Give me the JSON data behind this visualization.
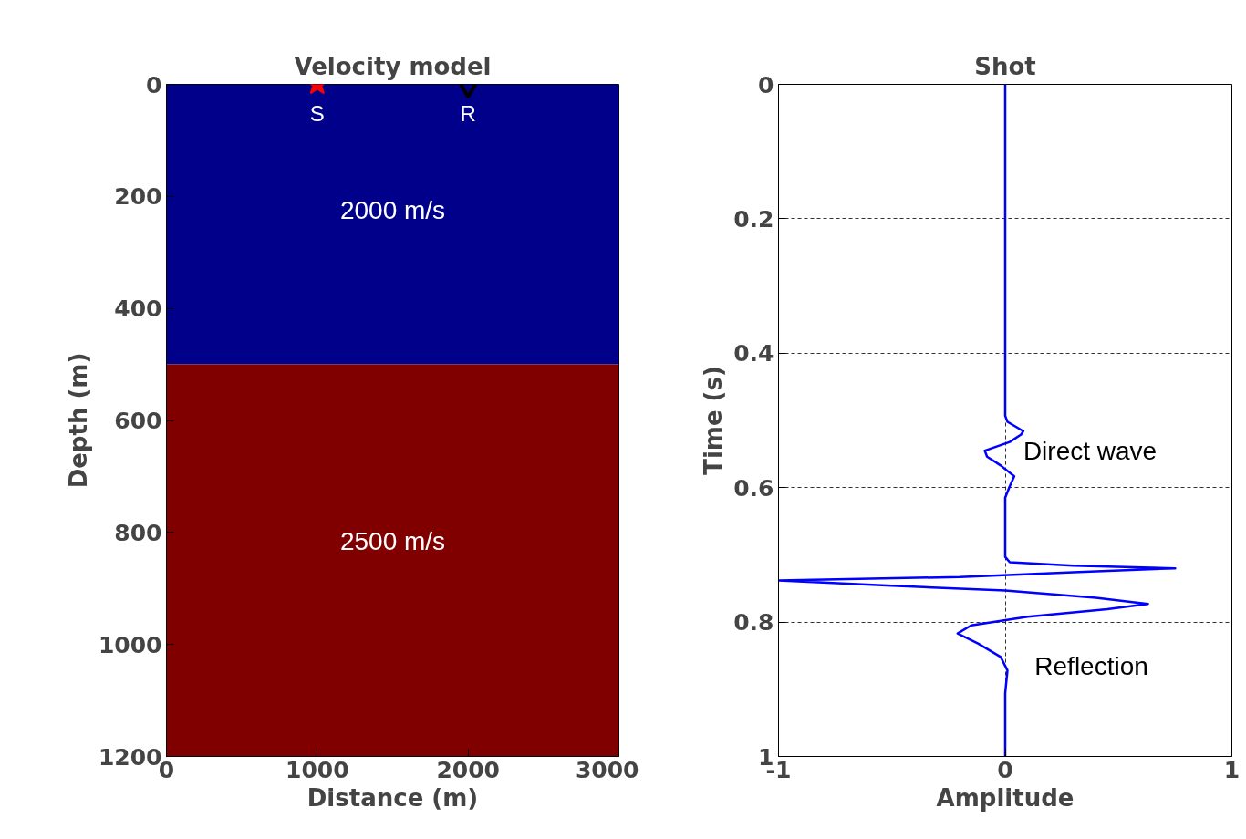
{
  "chart_data": [
    {
      "type": "scatter",
      "title": "Velocity model",
      "xlabel": "Distance (m)",
      "ylabel": "Depth (m)",
      "xlim": [
        0,
        3000
      ],
      "ylim": [
        1200,
        0
      ],
      "xticks": [
        0,
        1000,
        2000,
        3000
      ],
      "yticks": [
        0,
        200,
        400,
        600,
        800,
        1000,
        1200
      ],
      "grid": false,
      "bands": [
        {
          "axis": "y",
          "from": 0,
          "to": 500,
          "label": "2000 m/s",
          "color": "#00008b"
        },
        {
          "axis": "y",
          "from": 500,
          "to": 1200,
          "label": "2500 m/s",
          "color": "#800000"
        }
      ],
      "series": [
        {
          "name": "S",
          "color": "#ff0000",
          "marker": "star",
          "x": [
            1000
          ],
          "values": [
            0
          ]
        },
        {
          "name": "R",
          "color": "#000000",
          "marker": "triangle",
          "x": [
            2000
          ],
          "values": [
            0
          ]
        }
      ]
    },
    {
      "type": "line",
      "title": "Shot",
      "xlabel": "Amplitude",
      "ylabel": "Time (s)",
      "xlim": [
        -1,
        1
      ],
      "ylim": [
        1,
        0
      ],
      "xticks": [
        -1,
        0,
        1
      ],
      "yticks": [
        0,
        0.2,
        0.4,
        0.6,
        0.8,
        1
      ],
      "grid": true,
      "line_style": "solid",
      "annotations": [
        "Direct wave",
        "Reflection"
      ],
      "series": [
        {
          "color": "#0000ff",
          "x": [
            0,
            0,
            0.01,
            0.08,
            0.07,
            0.02,
            -0.09,
            -0.08,
            -0.02,
            0.04,
            0.02,
            0,
            0,
            0.02,
            0.3,
            0.75,
            0.3,
            -0.2,
            -1.0,
            -0.5,
            0,
            0.4,
            0.63,
            0.45,
            0.1,
            -0.15,
            -0.21,
            -0.12,
            -0.02,
            0.01,
            0,
            0
          ],
          "values": [
            0,
            0.493,
            0.502,
            0.516,
            0.521,
            0.532,
            0.545,
            0.554,
            0.567,
            0.583,
            0.598,
            0.615,
            0.703,
            0.711,
            0.716,
            0.72,
            0.726,
            0.733,
            0.738,
            0.746,
            0.753,
            0.764,
            0.773,
            0.781,
            0.792,
            0.805,
            0.817,
            0.832,
            0.852,
            0.872,
            0.906,
            1
          ]
        }
      ]
    }
  ]
}
